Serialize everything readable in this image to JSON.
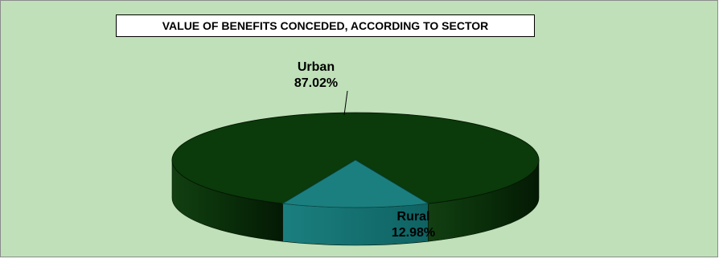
{
  "chart_data": {
    "type": "pie",
    "title": "VALUE OF BENEFITS CONCEDED, ACCORDING TO SECTOR",
    "three_d": true,
    "categories": [
      "Urban",
      "Rural"
    ],
    "values": [
      87.02,
      12.98
    ],
    "value_labels": [
      "87.02%",
      "12.98%"
    ],
    "colors": {
      "Urban": "#0b3a0b",
      "Rural": "#1b7f7f",
      "background": "#bfe0b8"
    },
    "legend": "none"
  }
}
